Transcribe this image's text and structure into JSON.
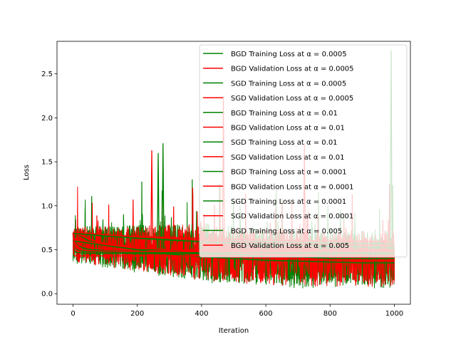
{
  "chart_data": {
    "type": "line",
    "title": "",
    "xlabel": "Iteration",
    "ylabel": "Loss",
    "xlim": [
      -50,
      1050
    ],
    "ylim": [
      -0.12,
      2.87
    ],
    "xticks": [
      0,
      200,
      400,
      600,
      800,
      1000
    ],
    "yticks": [
      0.0,
      0.5,
      1.0,
      1.5,
      2.0,
      2.5
    ],
    "xtick_labels": [
      "0",
      "200",
      "400",
      "600",
      "800",
      "1000"
    ],
    "ytick_labels": [
      "0.0",
      "0.5",
      "1.0",
      "1.5",
      "2.0",
      "2.5"
    ],
    "grid": false,
    "legend_position": "upper right",
    "colors": {
      "training": "#008000",
      "validation": "#ff0000"
    },
    "series": [
      {
        "name": "BGD Training Loss at α = 0.0005",
        "kind": "training",
        "method": "BGD",
        "alpha": 0.0005,
        "x": [
          0,
          5,
          10,
          20,
          40,
          60,
          100,
          150,
          200,
          300,
          500,
          700,
          1000
        ],
        "values": [
          0.69,
          0.62,
          0.58,
          0.54,
          0.51,
          0.5,
          0.49,
          0.485,
          0.48,
          0.475,
          0.47,
          0.468,
          0.465
        ]
      },
      {
        "name": "BGD Validation Loss at α = 0.0005",
        "kind": "validation",
        "method": "BGD",
        "alpha": 0.0005,
        "x": [
          0,
          5,
          10,
          20,
          40,
          60,
          100,
          150,
          200,
          300,
          500,
          700,
          1000
        ],
        "values": [
          0.69,
          0.63,
          0.59,
          0.55,
          0.53,
          0.52,
          0.51,
          0.505,
          0.5,
          0.497,
          0.495,
          0.493,
          0.49
        ]
      },
      {
        "name": "SGD Training Loss at α = 0.0005",
        "kind": "training",
        "method": "SGD",
        "alpha": 0.0005,
        "x": [
          0,
          50,
          100,
          200,
          300,
          400,
          500,
          600,
          700,
          800,
          900,
          1000
        ],
        "values": [
          0.7,
          0.6,
          0.55,
          0.5,
          0.45,
          0.42,
          0.4,
          0.38,
          0.37,
          0.36,
          0.35,
          0.35
        ]
      },
      {
        "name": "SGD Validation Loss at α = 0.0005",
        "kind": "validation",
        "method": "SGD",
        "alpha": 0.0005,
        "x": [
          0,
          50,
          100,
          200,
          300,
          400,
          500,
          600,
          700,
          800,
          900,
          1000
        ],
        "values": [
          0.7,
          0.62,
          0.57,
          0.52,
          0.48,
          0.45,
          0.43,
          0.41,
          0.4,
          0.39,
          0.38,
          0.38
        ]
      },
      {
        "name": "BGD Training Loss at α = 0.01",
        "kind": "training",
        "method": "BGD",
        "alpha": 0.01,
        "x": [
          0,
          2,
          5,
          10,
          20,
          50,
          100,
          300,
          600,
          1000
        ],
        "values": [
          0.69,
          0.52,
          0.48,
          0.47,
          0.465,
          0.46,
          0.458,
          0.456,
          0.455,
          0.455
        ]
      },
      {
        "name": "BGD Validation Loss at α = 0.01",
        "kind": "validation",
        "method": "BGD",
        "alpha": 0.01,
        "x": [
          0,
          2,
          5,
          10,
          20,
          50,
          100,
          300,
          600,
          1000
        ],
        "values": [
          0.69,
          0.45,
          0.43,
          0.43,
          0.43,
          0.43,
          0.43,
          0.43,
          0.43,
          0.43
        ]
      },
      {
        "name": "SGD Training Loss at α = 0.01",
        "kind": "training",
        "method": "SGD",
        "alpha": 0.01,
        "x": [
          0,
          100,
          200,
          300,
          400,
          500,
          600,
          700,
          800,
          900,
          1000
        ],
        "values": [
          0.6,
          0.55,
          0.5,
          0.5,
          0.45,
          0.45,
          0.42,
          0.42,
          0.4,
          0.4,
          0.4
        ]
      },
      {
        "name": "SGD Validation Loss at α = 0.01",
        "kind": "validation",
        "method": "SGD",
        "alpha": 0.01,
        "x": [
          0,
          100,
          200,
          300,
          400,
          500,
          600,
          700,
          800,
          900,
          1000
        ],
        "values": [
          0.62,
          0.56,
          0.52,
          0.5,
          0.48,
          0.46,
          0.45,
          0.44,
          0.43,
          0.42,
          0.42
        ]
      },
      {
        "name": "BGD Training Loss at α = 0.0001",
        "kind": "training",
        "method": "BGD",
        "alpha": 0.0001,
        "x": [
          0,
          50,
          100,
          200,
          400,
          600,
          800,
          1000
        ],
        "values": [
          0.69,
          0.67,
          0.655,
          0.635,
          0.61,
          0.59,
          0.575,
          0.565
        ]
      },
      {
        "name": "BGD Validation Loss at α = 0.0001",
        "kind": "validation",
        "method": "BGD",
        "alpha": 0.0001,
        "x": [
          0,
          50,
          100,
          200,
          400,
          600,
          800,
          1000
        ],
        "values": [
          0.7,
          0.685,
          0.67,
          0.65,
          0.63,
          0.61,
          0.6,
          0.59
        ]
      },
      {
        "name": "SGD Training Loss at α = 0.0001",
        "kind": "training",
        "method": "SGD",
        "alpha": 0.0001,
        "x": [
          0,
          100,
          200,
          400,
          600,
          800,
          1000
        ],
        "values": [
          0.7,
          0.66,
          0.63,
          0.59,
          0.56,
          0.54,
          0.52
        ]
      },
      {
        "name": "SGD Validation Loss at α = 0.0001",
        "kind": "validation",
        "method": "SGD",
        "alpha": 0.0001,
        "x": [
          0,
          100,
          200,
          400,
          600,
          800,
          1000
        ],
        "values": [
          0.7,
          0.67,
          0.645,
          0.61,
          0.58,
          0.56,
          0.55
        ]
      },
      {
        "name": "BGD Training Loss at α = 0.005",
        "kind": "training",
        "method": "BGD",
        "alpha": 0.005,
        "x": [
          0,
          5,
          10,
          20,
          50,
          100,
          200,
          500,
          1000
        ],
        "values": [
          0.69,
          0.55,
          0.51,
          0.49,
          0.48,
          0.475,
          0.47,
          0.468,
          0.467
        ]
      },
      {
        "name": "BGD Validation Loss at α = 0.005",
        "kind": "validation",
        "method": "BGD",
        "alpha": 0.005,
        "x": [
          0,
          5,
          10,
          20,
          50,
          100,
          200,
          500,
          1000
        ],
        "values": [
          0.69,
          0.56,
          0.52,
          0.5,
          0.49,
          0.485,
          0.48,
          0.478,
          0.477
        ]
      }
    ],
    "noisy_peaks": [
      {
        "kind": "validation",
        "x": 245,
        "y": 1.63
      },
      {
        "kind": "training",
        "x": 280,
        "y": 1.71
      },
      {
        "kind": "training",
        "x": 265,
        "y": 1.6
      },
      {
        "kind": "validation",
        "x": 468,
        "y": 2.25
      },
      {
        "kind": "training",
        "x": 990,
        "y": 2.77
      },
      {
        "kind": "validation",
        "x": 720,
        "y": 1.7
      }
    ]
  }
}
